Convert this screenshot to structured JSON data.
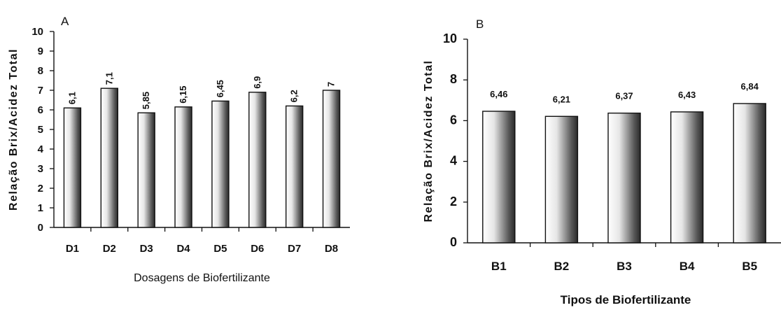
{
  "chart_data": [
    {
      "type": "bar",
      "panel_label": "A",
      "categories": [
        "D1",
        "D2",
        "D3",
        "D4",
        "D5",
        "D6",
        "D7",
        "D8"
      ],
      "values": [
        6.1,
        7.1,
        5.85,
        6.15,
        6.45,
        6.9,
        6.2,
        7
      ],
      "data_labels": [
        "6,1",
        "7,1",
        "5,85",
        "6,15",
        "6,45",
        "6,9",
        "6,2",
        "7"
      ],
      "xlabel": "Dosagens de Biofertilizante",
      "ylabel": "Relação Brix/Acidez Total",
      "ylim": [
        0,
        10
      ],
      "yticks": [
        0,
        1,
        2,
        3,
        4,
        5,
        6,
        7,
        8,
        9,
        10
      ],
      "grid": false,
      "data_label_rotation": "vertical"
    },
    {
      "type": "bar",
      "panel_label": "B",
      "categories": [
        "B1",
        "B2",
        "B3",
        "B4",
        "B5"
      ],
      "values": [
        6.46,
        6.21,
        6.37,
        6.43,
        6.84
      ],
      "data_labels": [
        "6,46",
        "6,21",
        "6,37",
        "6,43",
        "6,84"
      ],
      "xlabel": "Tipos de Biofertilizante",
      "ylabel": "Relação Brix/Acidez Total",
      "ylim": [
        0,
        10
      ],
      "yticks": [
        0,
        2,
        4,
        6,
        8,
        10
      ],
      "grid": false,
      "data_label_rotation": "horizontal"
    }
  ]
}
